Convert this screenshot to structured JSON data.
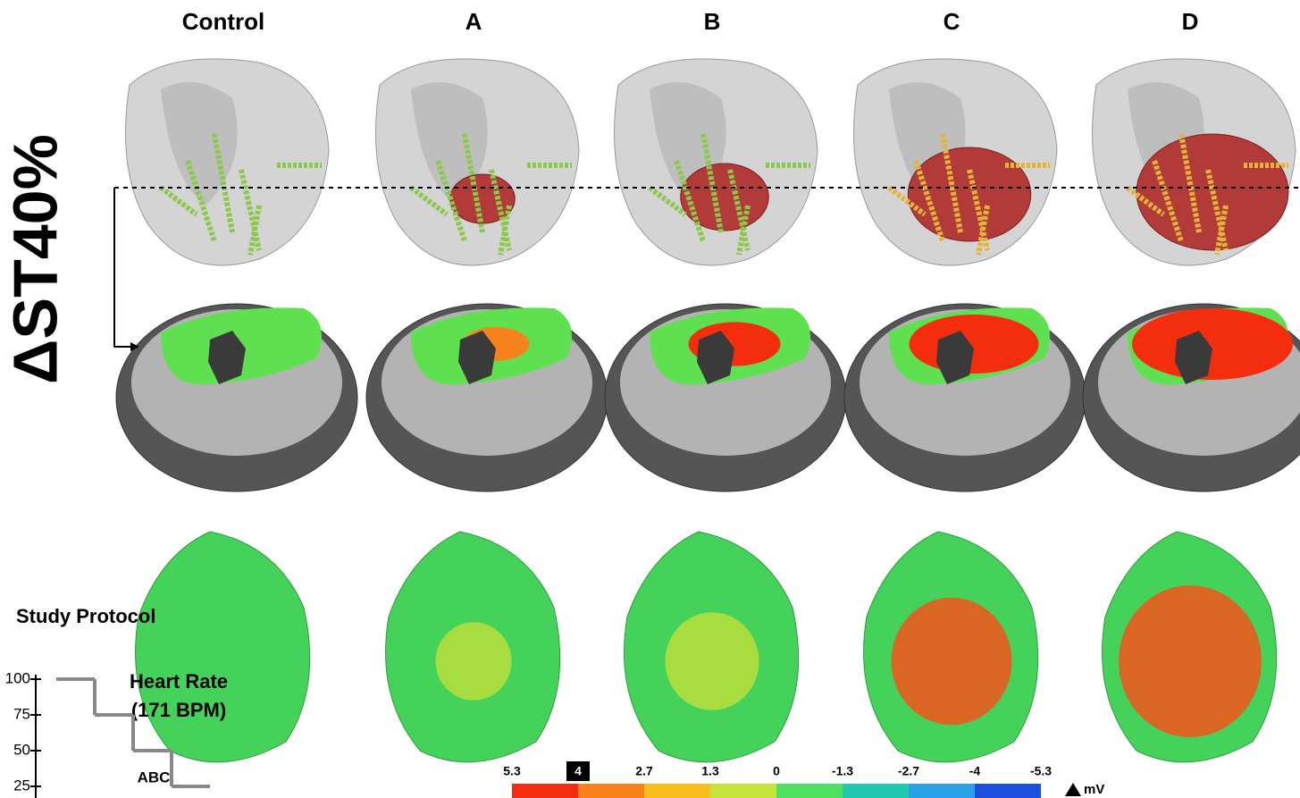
{
  "header": {
    "columns": [
      "Control",
      "A",
      "B",
      "C",
      "D"
    ]
  },
  "side_label": "ΔST40%",
  "protocol": {
    "title": "Study Protocol",
    "label_line1": "Heart Rate",
    "label_line2": "(171 BPM)",
    "annotation": "ABC",
    "ylim": [
      25,
      100
    ],
    "yticks": [
      100,
      75,
      50,
      25
    ],
    "steps": [
      100,
      75,
      50,
      25
    ]
  },
  "colorbar": {
    "ticks": [
      5.3,
      4,
      2.7,
      1.3,
      0,
      -1.3,
      -2.7,
      -4,
      -5.3
    ],
    "highlight": 1,
    "colors": [
      "#f42d0f",
      "#f7821c",
      "#f9bd1e",
      "#c5e33b",
      "#4ee060",
      "#22c9b0",
      "#2aa2ea",
      "#1a4fe0"
    ],
    "unit": "mV"
  }
}
